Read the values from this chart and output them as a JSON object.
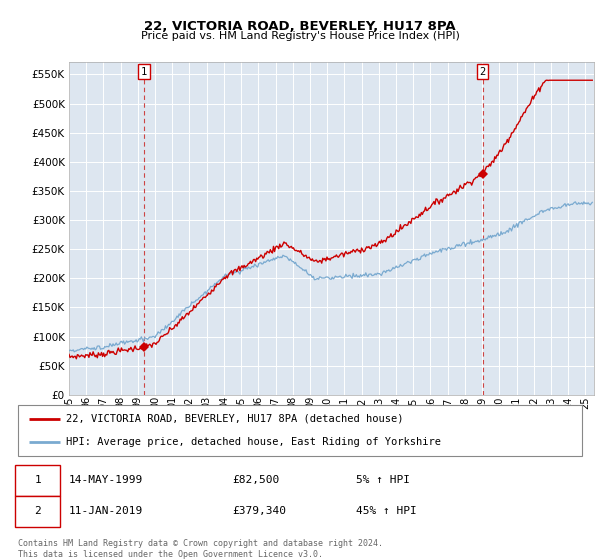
{
  "title": "22, VICTORIA ROAD, BEVERLEY, HU17 8PA",
  "subtitle": "Price paid vs. HM Land Registry's House Price Index (HPI)",
  "ytick_values": [
    0,
    50000,
    100000,
    150000,
    200000,
    250000,
    300000,
    350000,
    400000,
    450000,
    500000,
    550000
  ],
  "ylim": [
    0,
    572000
  ],
  "xlim_start": 1995.0,
  "xlim_end": 2025.5,
  "background_color": "#dde6f0",
  "grid_color": "#ffffff",
  "red_line_color": "#cc0000",
  "blue_line_color": "#7aaad0",
  "marker_color": "#cc0000",
  "transaction1": {
    "date_x": 1999.37,
    "price": 82500,
    "label": "1",
    "date_str": "14-MAY-1999",
    "price_str": "£82,500",
    "hpi_str": "5% ↑ HPI"
  },
  "transaction2": {
    "date_x": 2019.03,
    "price": 379340,
    "label": "2",
    "date_str": "11-JAN-2019",
    "price_str": "£379,340",
    "hpi_str": "45% ↑ HPI"
  },
  "legend_line1": "22, VICTORIA ROAD, BEVERLEY, HU17 8PA (detached house)",
  "legend_line2": "HPI: Average price, detached house, East Riding of Yorkshire",
  "footer": "Contains HM Land Registry data © Crown copyright and database right 2024.\nThis data is licensed under the Open Government Licence v3.0.",
  "xtick_years": [
    1995,
    1996,
    1997,
    1998,
    1999,
    2000,
    2001,
    2002,
    2003,
    2004,
    2005,
    2006,
    2007,
    2008,
    2009,
    2010,
    2011,
    2012,
    2013,
    2014,
    2015,
    2016,
    2017,
    2018,
    2019,
    2020,
    2021,
    2022,
    2023,
    2024,
    2025
  ]
}
